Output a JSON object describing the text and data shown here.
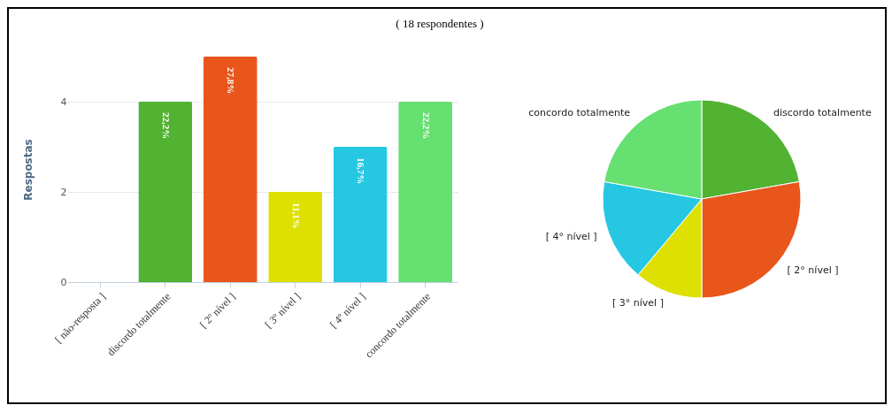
{
  "chart_data": [
    {
      "type": "bar",
      "title": "( 18 respondentes )",
      "ylabel": "Respostas",
      "categories": [
        "[ não-resposta ]",
        "discordo totalmente",
        "[ 2º nível ]",
        "[ 3º nível ]",
        "[ 4º nível ]",
        "concordo totalmente"
      ],
      "values": [
        0,
        4,
        5,
        2,
        3,
        4
      ],
      "colors": [
        "#4a90d9",
        "#52b232",
        "#e8561c",
        "#dde000",
        "#26c7e3",
        "#66e070"
      ],
      "ylim": [
        0,
        5
      ],
      "yticks": [
        0,
        2,
        4
      ],
      "grid": "y",
      "annotations": [
        {
          "text": "22,2%",
          "x": "discordo totalmente",
          "y": 4
        },
        {
          "text": "27,8%",
          "x": "[ 2º nível ]",
          "y": 5
        },
        {
          "text": "11,1%",
          "x": "[ 3º nível ]",
          "y": 2
        },
        {
          "text": "16,7%",
          "x": "[ 4º nível ]",
          "y": 3
        },
        {
          "text": "22,2%",
          "x": "concordo totalmente",
          "y": 4
        }
      ]
    },
    {
      "type": "pie",
      "categories": [
        "discordo totalmente",
        "[ 2° nível ]",
        "[ 3° nível ]",
        "[ 4° nível ]",
        "concordo totalmente"
      ],
      "values": [
        22.2,
        27.8,
        11.1,
        16.7,
        22.2
      ],
      "colors": [
        "#52b232",
        "#e8561c",
        "#dde000",
        "#26c7e3",
        "#66e070"
      ]
    }
  ]
}
